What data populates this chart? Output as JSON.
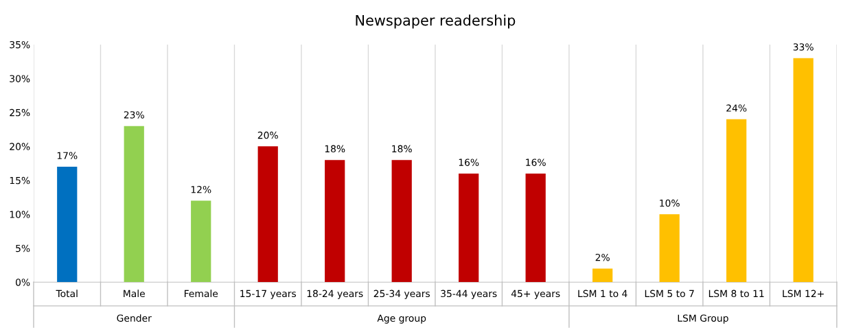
{
  "chart_data": {
    "type": "bar",
    "title": "Newspaper readership",
    "categories": [
      "Total",
      "Male",
      "Female",
      "15-17 years",
      "18-24 years",
      "25-34 years",
      "35-44 years",
      "45+ years",
      "LSM 1 to 4",
      "LSM 5 to 7",
      "LSM 8 to 11",
      "LSM 12+"
    ],
    "values": [
      17,
      23,
      12,
      20,
      18,
      18,
      16,
      16,
      2,
      10,
      24,
      33
    ],
    "colors": [
      "#0070c0",
      "#92d050",
      "#92d050",
      "#c00000",
      "#c00000",
      "#c00000",
      "#c00000",
      "#c00000",
      "#ffc000",
      "#ffc000",
      "#ffc000",
      "#ffc000"
    ],
    "value_labels": [
      "17%",
      "23%",
      "12%",
      "20%",
      "18%",
      "18%",
      "16%",
      "16%",
      "2%",
      "10%",
      "24%",
      "33%"
    ],
    "ylim": [
      0,
      35
    ],
    "yticks": [
      {
        "value": 0,
        "label": "0%"
      },
      {
        "value": 5,
        "label": "5%"
      },
      {
        "value": 10,
        "label": "10%"
      },
      {
        "value": 15,
        "label": "15%"
      },
      {
        "value": 20,
        "label": "20%"
      },
      {
        "value": 25,
        "label": "25%"
      },
      {
        "value": 30,
        "label": "30%"
      },
      {
        "value": 35,
        "label": "35%"
      }
    ],
    "annotations": [
      "Gender",
      "Age group",
      "LSM Group"
    ],
    "grid": false,
    "legend": false
  }
}
